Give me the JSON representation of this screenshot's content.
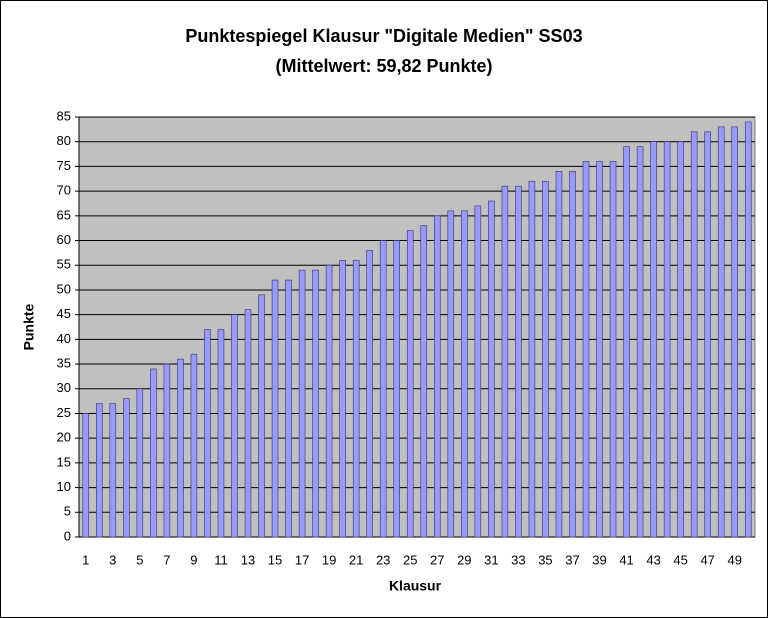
{
  "chart_data": {
    "type": "bar",
    "title": "Punktespiegel Klausur \"Digitale Medien\" SS03",
    "subtitle": "(Mittelwert: 59,82 Punkte)",
    "x_label": "Klausur",
    "y_label": "Punkte",
    "categories": [
      1,
      null,
      3,
      null,
      5,
      null,
      7,
      null,
      9,
      null,
      11,
      null,
      13,
      null,
      15,
      null,
      17,
      null,
      19,
      null,
      21,
      null,
      23,
      null,
      25,
      null,
      27,
      null,
      29,
      null,
      31,
      null,
      33,
      null,
      35,
      null,
      37,
      null,
      39,
      null,
      41,
      null,
      43,
      null,
      45,
      null,
      47,
      null,
      49,
      null
    ],
    "values": [
      25,
      27,
      27,
      28,
      30,
      34,
      35,
      36,
      37,
      42,
      42,
      45,
      46,
      49,
      52,
      52,
      54,
      54,
      55,
      56,
      56,
      58,
      60,
      60,
      62,
      63,
      65,
      66,
      66,
      67,
      68,
      71,
      71,
      72,
      72,
      74,
      74,
      76,
      76,
      76,
      79,
      79,
      80,
      80,
      80,
      82,
      82,
      83,
      83,
      84
    ],
    "color": "#9999ff",
    "ylim": [
      0,
      85
    ],
    "yticks": [
      0,
      5,
      10,
      15,
      20,
      25,
      30,
      35,
      40,
      45,
      50,
      55,
      60,
      65,
      70,
      75,
      80,
      85
    ],
    "grid": true
  }
}
